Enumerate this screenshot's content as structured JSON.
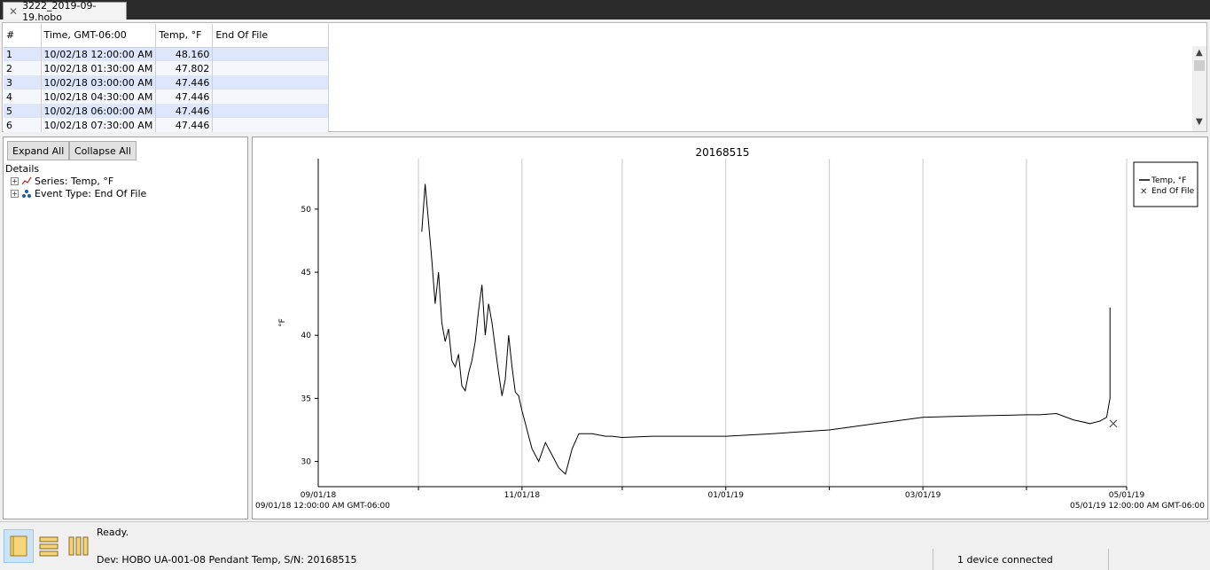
{
  "tab": {
    "title": "3222_2019-09-19.hobo"
  },
  "table": {
    "columns": [
      "#",
      "Time, GMT-06:00",
      "Temp, °F",
      "End Of File"
    ],
    "rows": [
      [
        "1",
        "10/02/18 12:00:00 AM",
        "48.160",
        ""
      ],
      [
        "2",
        "10/02/18 01:30:00 AM",
        "47.802",
        ""
      ],
      [
        "3",
        "10/02/18 03:00:00 AM",
        "47.446",
        ""
      ],
      [
        "4",
        "10/02/18 04:30:00 AM",
        "47.446",
        ""
      ],
      [
        "5",
        "10/02/18 06:00:00 AM",
        "47.446",
        ""
      ],
      [
        "6",
        "10/02/18 07:30:00 AM",
        "47.446",
        ""
      ]
    ]
  },
  "details": {
    "expand_all": "Expand All",
    "collapse_all": "Collapse All",
    "header": "Details",
    "items": [
      "Series: Temp, °F",
      "Event Type: End Of File"
    ]
  },
  "chart_data": {
    "type": "line",
    "title": "20168515",
    "ylabel": "°F",
    "xlabel": "",
    "ylim": [
      28,
      54
    ],
    "yticks": [
      30,
      35,
      40,
      45,
      50
    ],
    "x_tick_labels": [
      "09/01/18",
      "11/01/18",
      "01/01/19",
      "03/01/19",
      "05/01/19"
    ],
    "x_start_label": "09/01/18 12:00:00 AM GMT-06:00",
    "x_end_label": "05/01/19 12:00:00 AM GMT-06:00",
    "legend_position": "top-right",
    "grid": "vertical",
    "series": [
      {
        "name": "Temp, °F",
        "color": "#000000",
        "x": [
          "2018-10-02",
          "2018-10-03",
          "2018-10-04",
          "2018-10-05",
          "2018-10-06",
          "2018-10-07",
          "2018-10-08",
          "2018-10-09",
          "2018-10-10",
          "2018-10-11",
          "2018-10-12",
          "2018-10-13",
          "2018-10-14",
          "2018-10-15",
          "2018-10-16",
          "2018-10-17",
          "2018-10-18",
          "2018-10-19",
          "2018-10-20",
          "2018-10-21",
          "2018-10-22",
          "2018-10-23",
          "2018-10-24",
          "2018-10-25",
          "2018-10-26",
          "2018-10-27",
          "2018-10-28",
          "2018-10-29",
          "2018-10-30",
          "2018-10-31",
          "2018-11-01",
          "2018-11-02",
          "2018-11-03",
          "2018-11-04",
          "2018-11-06",
          "2018-11-08",
          "2018-11-10",
          "2018-11-12",
          "2018-11-14",
          "2018-11-16",
          "2018-11-18",
          "2018-11-20",
          "2018-11-22",
          "2018-11-24",
          "2018-11-26",
          "2018-11-28",
          "2018-12-01",
          "2018-12-10",
          "2018-12-20",
          "2019-01-01",
          "2019-01-15",
          "2019-02-01",
          "2019-02-15",
          "2019-03-01",
          "2019-03-15",
          "2019-04-01",
          "2019-04-05",
          "2019-04-10",
          "2019-04-15",
          "2019-04-20",
          "2019-04-23",
          "2019-04-25",
          "2019-04-26",
          "2019-04-26"
        ],
        "y": [
          48.2,
          52.0,
          49.0,
          46.0,
          42.5,
          45.0,
          41.0,
          39.5,
          40.5,
          38.0,
          37.5,
          38.5,
          36.0,
          35.6,
          37.0,
          38.0,
          39.5,
          42.0,
          44.0,
          40.0,
          42.5,
          41.0,
          39.0,
          37.0,
          35.2,
          36.5,
          40.0,
          37.5,
          35.5,
          35.2,
          34.0,
          33.0,
          32.0,
          31.0,
          30.0,
          31.5,
          30.5,
          29.5,
          29.0,
          31.0,
          32.2,
          32.2,
          32.2,
          32.1,
          32.0,
          32.0,
          31.9,
          32.0,
          32.0,
          32.0,
          32.2,
          32.5,
          33.0,
          33.5,
          33.6,
          33.7,
          33.7,
          33.8,
          33.3,
          33.0,
          33.2,
          33.5,
          35.0,
          42.2
        ]
      }
    ],
    "events": [
      {
        "name": "End Of File",
        "marker": "x",
        "x": "2019-04-27",
        "y": 33.0
      }
    ]
  },
  "status": {
    "message": "Ready.",
    "device": "Dev: HOBO UA-001-08 Pendant Temp, S/N: 20168515",
    "connected": "1 device connected"
  }
}
